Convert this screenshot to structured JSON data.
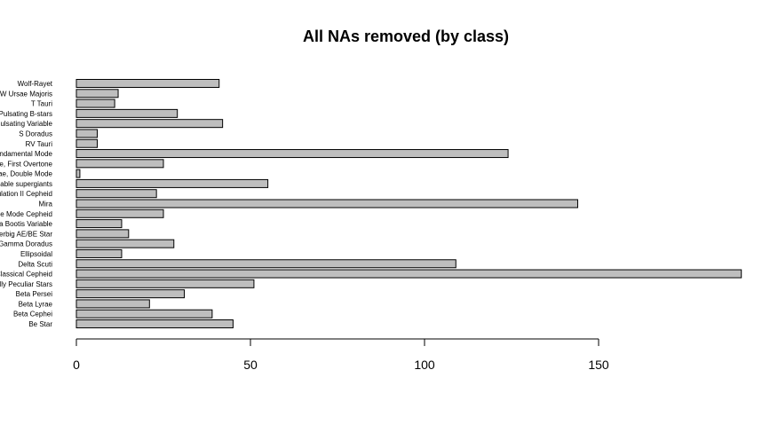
{
  "chart_data": {
    "type": "bar",
    "orientation": "horizontal",
    "title": "All NAs removed (by class)",
    "xlabel": "",
    "ylabel": "",
    "xlim": [
      0,
      192
    ],
    "x_ticks": [
      0,
      50,
      100,
      150
    ],
    "grid": false,
    "bar_color": "#bebebe",
    "categories": [
      "Be Star",
      "Beta Cephei",
      "Beta Lyrae",
      "Beta Persei",
      "Chemically Peculiar Stars",
      "Classical Cepheid",
      "Delta Scuti",
      "Ellipsoidal",
      "Gamma Doradus",
      "Herbig AE/BE Star",
      "Lambda Bootis Variable",
      "Multiple Mode Cepheid",
      "Mira",
      "Population II Cepheid",
      "Periodically variable supergiants",
      "RR Lyrae, Double Mode",
      "RR Lyrae, First Overtone",
      "RR Lyrae, Fundamental Mode",
      "RV Tauri",
      "S Doradus",
      "Semiregular Pulsating Variable",
      "Slowly Pulsating B-stars",
      "T Tauri",
      "W Ursae Majoris",
      "Wolf-Rayet"
    ],
    "values": [
      45,
      39,
      21,
      31,
      51,
      191,
      109,
      13,
      28,
      15,
      13,
      25,
      144,
      23,
      55,
      1,
      25,
      124,
      6,
      6,
      42,
      29,
      11,
      12,
      41
    ]
  }
}
